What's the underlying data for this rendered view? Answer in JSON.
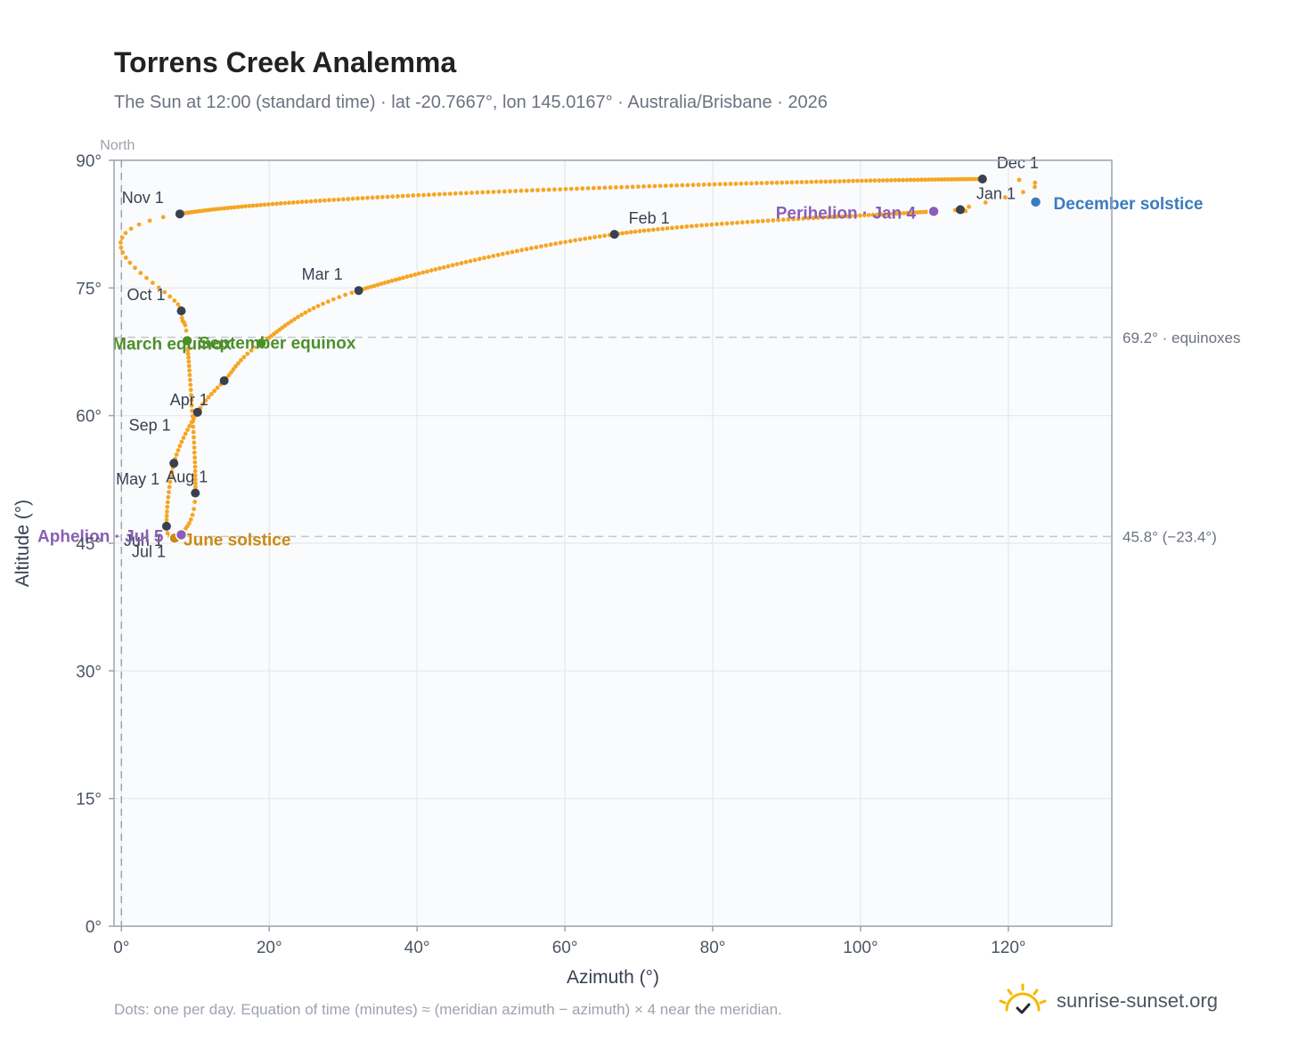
{
  "title": "Torrens Creek Analemma",
  "subtitle": "The Sun at 12:00 (standard time) · lat -20.7667°, lon 145.0167° · Australia/Brisbane · 2026",
  "footnote": "Dots: one per day. Equation of time (minutes) ≈ (meridian azimuth − azimuth) × 4 near the meridian.",
  "brand": "sunrise-sunset.org",
  "colors": {
    "path": "#f5a623",
    "month": "#374151",
    "equinox": "#4d8f2b",
    "june": "#c98a14",
    "december": "#3b7bbf",
    "apsis": "#8a5fb5",
    "grid": "#e5e7eb",
    "frame": "#9ca3af",
    "plot_bg": "#fafbfd",
    "text": "#4b5563"
  },
  "chart_data": {
    "type": "scatter",
    "xlabel": "Azimuth (°)",
    "ylabel": "Altitude (°)",
    "xlim": [
      -1,
      134
    ],
    "ylim": [
      0,
      90
    ],
    "x_ticks": [
      0,
      20,
      40,
      60,
      80,
      100,
      120
    ],
    "x_tick_labels": [
      "0°",
      "20°",
      "40°",
      "60°",
      "80°",
      "100°",
      "120°"
    ],
    "y_ticks": [
      0,
      15,
      30,
      45,
      60,
      75,
      90
    ],
    "y_tick_labels": [
      "0°",
      "15°",
      "30°",
      "45°",
      "60°",
      "75°",
      "90°"
    ],
    "grid": true,
    "north_line": {
      "x": 0,
      "label": "North"
    },
    "reference_lines": [
      {
        "y": 69.2,
        "label": "69.2° · equinoxes"
      },
      {
        "y": 45.8,
        "label": "45.8° (−23.4°)"
      }
    ],
    "path_keypoints": [
      [
        116.5,
        87.8
      ],
      [
        113.5,
        84.2
      ],
      [
        109.9,
        84.0
      ],
      [
        66.7,
        81.3
      ],
      [
        32.1,
        74.7
      ],
      [
        18.9,
        68.5
      ],
      [
        13.9,
        64.1
      ],
      [
        10.3,
        60.4
      ],
      [
        7.1,
        54.4
      ],
      [
        6.1,
        47.0
      ],
      [
        7.2,
        45.6
      ],
      [
        8.1,
        46.0
      ],
      [
        10.0,
        50.9
      ],
      [
        8.9,
        68.8
      ],
      [
        8.1,
        72.3
      ],
      [
        7.9,
        83.7
      ]
    ],
    "month_markers": [
      {
        "label": "Jan 1",
        "x": 113.5,
        "y": 84.2
      },
      {
        "label": "Feb 1",
        "x": 66.7,
        "y": 81.3
      },
      {
        "label": "Mar 1",
        "x": 32.1,
        "y": 74.7
      },
      {
        "label": "Apr 1",
        "x": 10.3,
        "y": 60.4
      },
      {
        "label": "May 1",
        "x": 7.1,
        "y": 54.4
      },
      {
        "label": "Jun 1",
        "x": 6.1,
        "y": 47.0
      },
      {
        "label": "Jul 1",
        "x": 7.2,
        "y": 45.6
      },
      {
        "label": "Aug 1",
        "x": 10.0,
        "y": 50.9
      },
      {
        "label": "Sep 1",
        "x": 13.9,
        "y": 64.1
      },
      {
        "label": "Oct 1",
        "x": 8.1,
        "y": 72.3
      },
      {
        "label": "Nov 1",
        "x": 7.9,
        "y": 83.7
      },
      {
        "label": "Dec 1",
        "x": 116.5,
        "y": 87.8
      }
    ],
    "events": [
      {
        "label": "March equinox",
        "x": 8.9,
        "y": 68.8,
        "kind": "equinox"
      },
      {
        "label": "September equinox",
        "x": 18.9,
        "y": 68.5,
        "kind": "equinox"
      },
      {
        "label": "June solstice",
        "x": 7.2,
        "y": 45.6,
        "kind": "june"
      },
      {
        "label": "December solstice",
        "x": 123.7,
        "y": 85.1,
        "kind": "december"
      },
      {
        "label": "Perihelion · Jan 4",
        "x": 109.9,
        "y": 84.0,
        "kind": "apsis"
      },
      {
        "label": "Aphelion · Jul 5",
        "x": 8.1,
        "y": 46.0,
        "kind": "apsis"
      }
    ]
  }
}
